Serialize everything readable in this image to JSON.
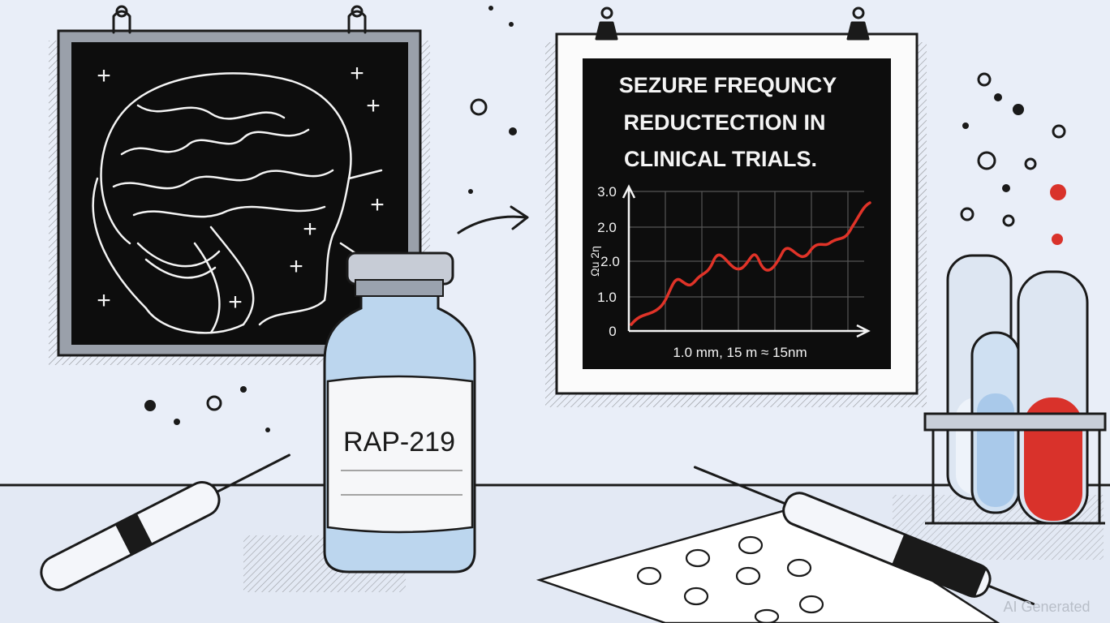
{
  "poster": {
    "title_lines": [
      "SEZURE FREQUNCY",
      "REDUCTECTION IN",
      "CLINICAL TRIALS."
    ],
    "y_labels": [
      "3.0",
      "2.0",
      "2.0",
      "1.0",
      "0"
    ],
    "y_axis_title": "Ωu 2ƞ",
    "x_axis_label": "1.0 mm,   15 m  ≈ 15nm"
  },
  "vial": {
    "label": "RAP-219"
  },
  "watermark": "AI Generated"
}
